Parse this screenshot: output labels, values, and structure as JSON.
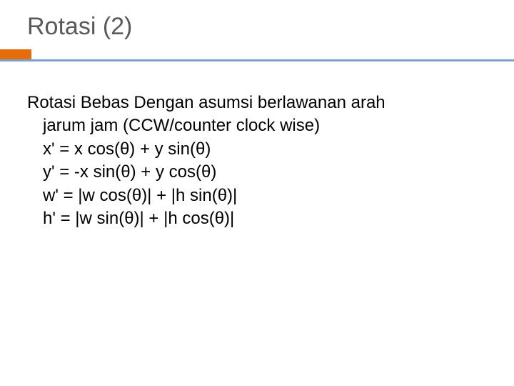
{
  "title": "Rotasi (2)",
  "divider": {
    "accent_color": "#e46c0a",
    "rule_color": "#7ba0cd"
  },
  "body": {
    "line1": "Rotasi Bebas Dengan asumsi berlawanan arah",
    "line2": "jarum jam (CCW/counter clock wise)",
    "eq1": "x' = x cos(θ) + y sin(θ)",
    "eq2": "y' = -x sin(θ) + y cos(θ)",
    "eq3": "w' = |w cos(θ)| + |h sin(θ)|",
    "eq4": "h' = |w sin(θ)| + |h cos(θ)|"
  },
  "text_color": "#000000",
  "title_color": "#595959",
  "background_color": "#ffffff"
}
